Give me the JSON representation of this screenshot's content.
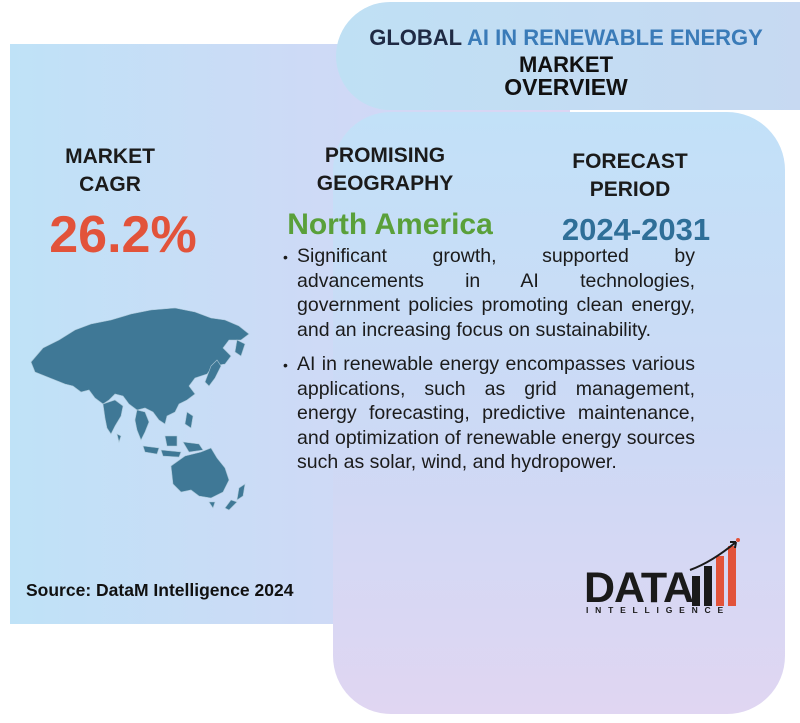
{
  "title": {
    "prefix": "GLOBAL",
    "highlight": "AI IN RENEWABLE ENERGY",
    "line2": "MARKET",
    "line3": "OVERVIEW"
  },
  "stats": {
    "cagr_label_1": "MARKET",
    "cagr_label_2": "CAGR",
    "cagr_value": "26.2%",
    "geo_label_1": "PROMISING",
    "geo_label_2": "GEOGRAPHY",
    "geo_value": "North America",
    "forecast_label_1": "FORECAST",
    "forecast_label_2": "PERIOD",
    "forecast_value": "2024-2031"
  },
  "bullets": [
    "Significant growth, supported by advancements in AI technologies, government policies promoting clean energy, and an increasing focus on sustainability.",
    "AI in renewable energy encompasses various applications, such as grid management, energy forecasting, predictive maintenance, and optimization of renewable energy sources such as solar, wind, and hydropower."
  ],
  "source": "Source: DataM Intelligence 2024",
  "logo": {
    "word": "DATA",
    "sub": "INTELLIGENCE"
  },
  "colors": {
    "cagr": "#e2533a",
    "geography": "#5aa03a",
    "forecast": "#2f6f98",
    "title_highlight": "#3a7bb8",
    "map": "#3f7896",
    "logo_bar": "#e2533a"
  },
  "icons": [
    "asia-pacific-map",
    "datam-logo-bars"
  ]
}
